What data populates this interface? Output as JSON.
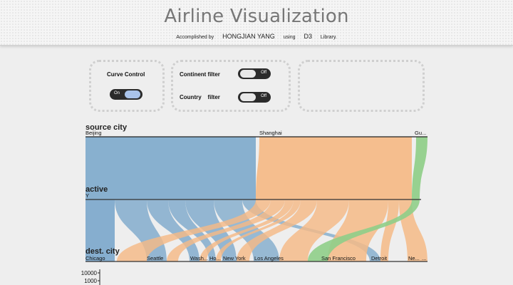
{
  "header": {
    "title": "Airline Visualization",
    "credit_prefix": "Accomplished by",
    "author": "HONGJIAN YANG",
    "credit_using": "using",
    "library": "D3",
    "credit_suffix": "Library."
  },
  "controls": {
    "curve": {
      "label": "Curve Control",
      "toggle_text": "On",
      "state": "on"
    },
    "continent": {
      "label": "Continent filter",
      "toggle_text": "Off",
      "state": "off"
    },
    "country": {
      "label": "Country    filter",
      "toggle_text": "Off",
      "state": "off"
    }
  },
  "chart_data": {
    "type": "parallel-sets",
    "dimensions": [
      {
        "name": "source city",
        "categories": [
          "Beijing",
          "Shanghai",
          "Gu..."
        ]
      },
      {
        "name": "active",
        "categories": [
          "Y"
        ]
      },
      {
        "name": "dest. city",
        "categories": [
          "Chicago",
          "Seattle",
          "Wash...",
          "Ho...",
          "New York",
          "Los Angeles",
          "San Francisco",
          "Detroit",
          "Ne...",
          "..."
        ]
      }
    ],
    "colors": {
      "Beijing": "#7faacc",
      "Shanghai": "#f5ba86",
      "Gu...": "#8fce88"
    },
    "scale_ticks": [
      "10000",
      "1000"
    ]
  }
}
